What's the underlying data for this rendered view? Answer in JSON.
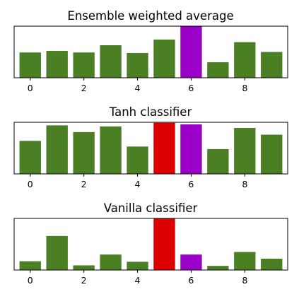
{
  "chart_data": [
    {
      "type": "bar",
      "title": "Ensemble weighted average",
      "x": [
        0,
        1,
        2,
        3,
        4,
        5,
        6,
        7,
        8,
        9
      ],
      "values": [
        0.49,
        0.52,
        0.49,
        0.63,
        0.48,
        0.74,
        1.0,
        0.3,
        0.69,
        0.5
      ],
      "bar_colors": [
        "#4a7f23",
        "#4a7f23",
        "#4a7f23",
        "#4a7f23",
        "#4a7f23",
        "#4a7f23",
        "#9b00c8",
        "#4a7f23",
        "#4a7f23",
        "#4a7f23"
      ],
      "xticks": [
        "0",
        "2",
        "4",
        "6",
        "8"
      ],
      "xlim": [
        -0.6,
        9.6
      ],
      "ylim": [
        0,
        1.0
      ],
      "grid": false
    },
    {
      "type": "bar",
      "title": "Tanh classifier",
      "x": [
        0,
        1,
        2,
        3,
        4,
        5,
        6,
        7,
        8,
        9
      ],
      "values": [
        0.64,
        0.94,
        0.81,
        0.92,
        0.53,
        0.99,
        0.96,
        0.48,
        0.89,
        0.76
      ],
      "bar_colors": [
        "#4a7f23",
        "#4a7f23",
        "#4a7f23",
        "#4a7f23",
        "#4a7f23",
        "#dd0000",
        "#9b00c8",
        "#4a7f23",
        "#4a7f23",
        "#4a7f23"
      ],
      "xticks": [
        "0",
        "2",
        "4",
        "6",
        "8"
      ],
      "xlim": [
        -0.6,
        9.6
      ],
      "ylim": [
        0,
        1.0
      ],
      "grid": false
    },
    {
      "type": "bar",
      "title": "Vanilla classifier",
      "x": [
        0,
        1,
        2,
        3,
        4,
        5,
        6,
        7,
        8,
        9
      ],
      "values": [
        0.17,
        0.66,
        0.09,
        0.3,
        0.16,
        1.0,
        0.3,
        0.08,
        0.35,
        0.22
      ],
      "bar_colors": [
        "#4a7f23",
        "#4a7f23",
        "#4a7f23",
        "#4a7f23",
        "#4a7f23",
        "#dd0000",
        "#9b00c8",
        "#4a7f23",
        "#4a7f23",
        "#4a7f23"
      ],
      "xticks": [
        "0",
        "2",
        "4",
        "6",
        "8"
      ],
      "xlim": [
        -0.6,
        9.6
      ],
      "ylim": [
        0,
        1.0
      ],
      "grid": false
    }
  ]
}
